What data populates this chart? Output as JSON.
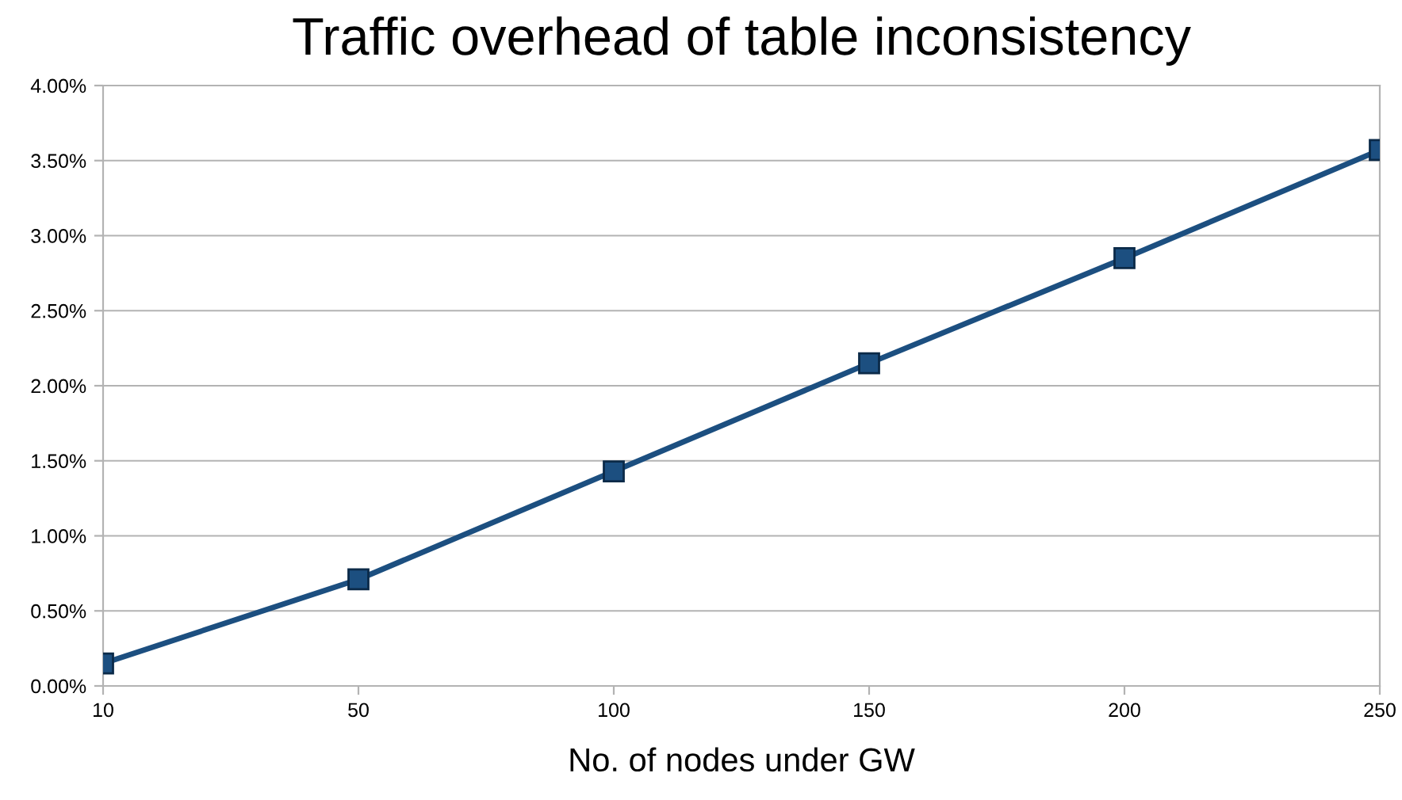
{
  "chart_data": {
    "type": "line",
    "title": "Traffic overhead of table inconsistency",
    "xlabel": "No. of nodes under GW",
    "categories": [
      "10",
      "50",
      "100",
      "150",
      "200",
      "250"
    ],
    "series": [
      {
        "color": "#1c4f80",
        "values": [
          0.15,
          0.71,
          1.43,
          2.15,
          2.85,
          3.57
        ]
      }
    ],
    "ylim": [
      0,
      4
    ],
    "yticks": [
      {
        "value": 0,
        "label": "0.00%"
      },
      {
        "value": 0.5,
        "label": "0.50%"
      },
      {
        "value": 1,
        "label": "1.00%"
      },
      {
        "value": 1.5,
        "label": "1.50%"
      },
      {
        "value": 2,
        "label": "2.00%"
      },
      {
        "value": 2.5,
        "label": "2.50%"
      },
      {
        "value": 3,
        "label": "3.00%"
      },
      {
        "value": 3.5,
        "label": "3.50%"
      },
      {
        "value": 4,
        "label": "4.00%"
      }
    ],
    "grid": "y",
    "marker": "square",
    "line_style": "solid"
  }
}
